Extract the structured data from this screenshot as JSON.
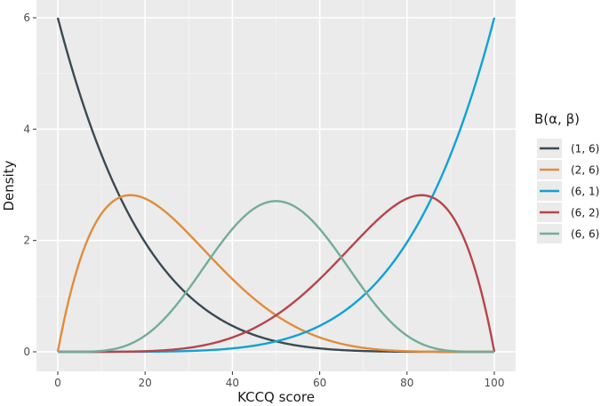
{
  "chart_data": {
    "type": "line",
    "xlabel": "KCCQ score",
    "ylabel": "Density",
    "xlim": [
      0,
      100
    ],
    "ylim": [
      0,
      6
    ],
    "x_ticks": [
      0,
      20,
      40,
      60,
      80,
      100
    ],
    "y_ticks": [
      0,
      2,
      4,
      6
    ],
    "grid": true,
    "legend": {
      "title": "B(α, β)",
      "position": "right"
    },
    "series": [
      {
        "name": "(1, 6)",
        "alpha": 1,
        "beta": 6,
        "color": "#3b4a52"
      },
      {
        "name": "(2, 6)",
        "alpha": 2,
        "beta": 6,
        "color": "#e08d3c"
      },
      {
        "name": "(6, 1)",
        "alpha": 6,
        "beta": 1,
        "color": "#11a1d6"
      },
      {
        "name": "(6, 2)",
        "alpha": 6,
        "beta": 2,
        "color": "#b5464b"
      },
      {
        "name": "(6, 6)",
        "alpha": 6,
        "beta": 6,
        "color": "#73ad98"
      }
    ]
  }
}
